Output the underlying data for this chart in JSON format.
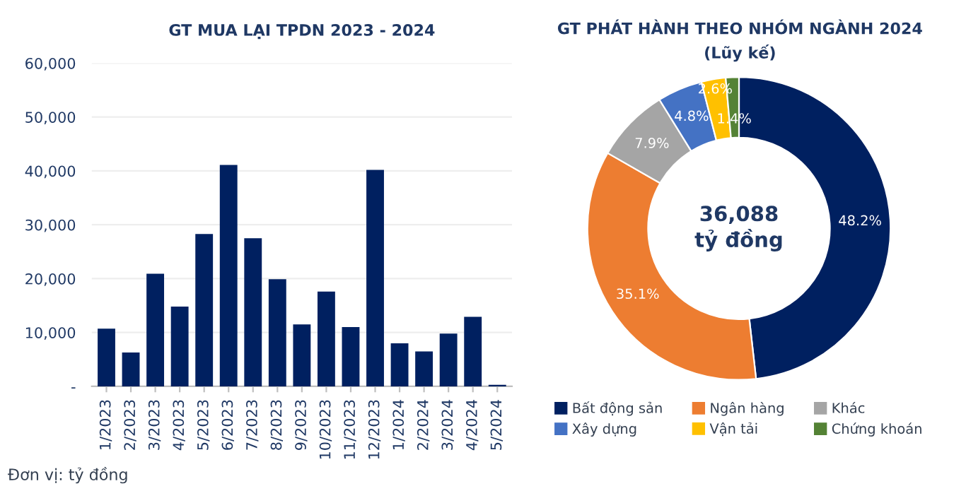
{
  "chart_data": [
    {
      "type": "bar",
      "title": "GT MUA LẠI TPDN 2023 - 2024",
      "categories": [
        "1/2023",
        "2/2023",
        "3/2023",
        "4/2023",
        "5/2023",
        "6/2023",
        "7/2023",
        "8/2023",
        "9/2023",
        "10/2023",
        "11/2023",
        "12/2023",
        "1/2024",
        "2/2024",
        "3/2024",
        "4/2024",
        "5/2024"
      ],
      "values": [
        10700,
        6300,
        20900,
        14800,
        28300,
        41100,
        27500,
        19900,
        11500,
        17600,
        11000,
        40200,
        8000,
        6500,
        9800,
        12900,
        300
      ],
      "color": "#002060",
      "ylim": [
        0,
        60000
      ],
      "yticks": [
        {
          "value": 0,
          "label": "-"
        },
        {
          "value": 10000,
          "label": "10,000"
        },
        {
          "value": 20000,
          "label": "20,000"
        },
        {
          "value": 30000,
          "label": "30,000"
        },
        {
          "value": 40000,
          "label": "40,000"
        },
        {
          "value": 50000,
          "label": "50,000"
        },
        {
          "value": 60000,
          "label": "60,000"
        }
      ],
      "grid": "y",
      "annotations": [
        "Đơn vị: tỷ đồng"
      ]
    },
    {
      "type": "donut",
      "title": "GT PHÁT HÀNH THEO NHÓM NGÀNH 2024",
      "subtitle": "(Lũy kế)",
      "categories": [
        "Bất động sản",
        "Ngân hàng",
        "Khác",
        "Xây dựng",
        "Vận tải",
        "Chứng khoán"
      ],
      "values": [
        48.2,
        35.1,
        7.9,
        4.8,
        2.6,
        1.4
      ],
      "colors": [
        "#002060",
        "#ed7d31",
        "#a5a5a5",
        "#4472c4",
        "#ffc000",
        "#548235"
      ],
      "value_labels": [
        "48.2%",
        "35.1%",
        "7.9%",
        "4.8%",
        "2.6%",
        "1.4%"
      ],
      "legend": "bottom",
      "annotations": [
        "36,088\ntỷ đồng"
      ]
    }
  ]
}
